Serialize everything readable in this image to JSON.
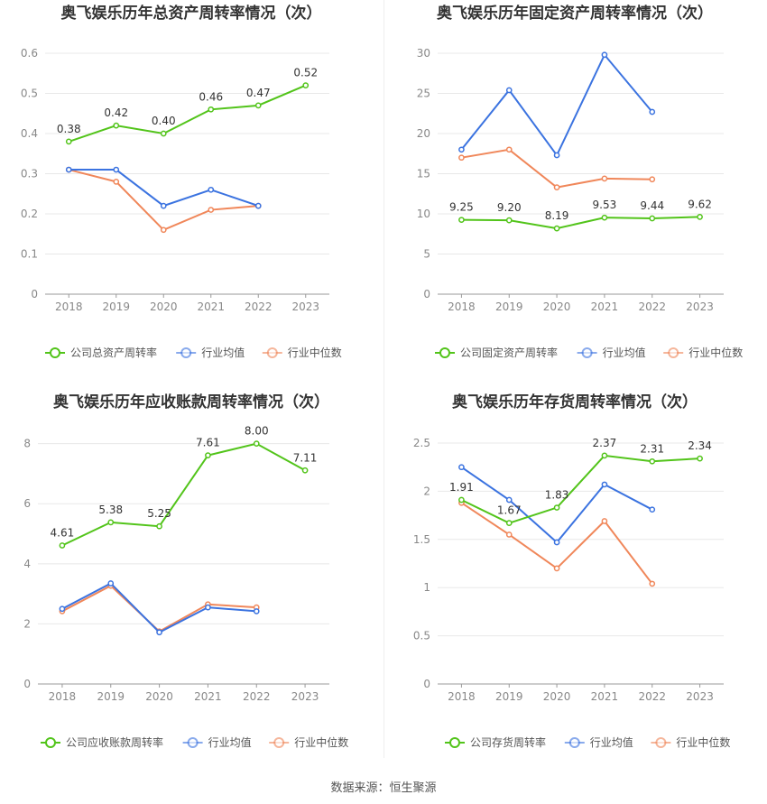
{
  "chart_data": [
    {
      "type": "line",
      "title": "奥飞娱乐历年总资产周转率情况（次）",
      "categories": [
        "2018",
        "2019",
        "2020",
        "2021",
        "2022",
        "2023"
      ],
      "ylim": [
        0,
        0.6
      ],
      "yticks": [
        "0",
        "0.1",
        "0.2",
        "0.3",
        "0.4",
        "0.5",
        "0.6"
      ],
      "series": [
        {
          "name": "公司总资产周转率",
          "color": "#52c41a",
          "values": [
            0.38,
            0.42,
            0.4,
            0.46,
            0.47,
            0.52
          ],
          "labels": [
            "0.38",
            "0.42",
            "0.40",
            "0.46",
            "0.47",
            "0.52"
          ]
        },
        {
          "name": "行业均值",
          "color": "#3b73e0",
          "values": [
            0.31,
            0.31,
            0.22,
            0.26,
            0.22,
            null
          ]
        },
        {
          "name": "行业中位数",
          "color": "#f0875a",
          "values": [
            0.31,
            0.28,
            0.16,
            0.21,
            0.22,
            null
          ]
        }
      ],
      "grid": true,
      "legend": "bottom"
    },
    {
      "type": "line",
      "title": "奥飞娱乐历年固定资产周转率情况（次）",
      "categories": [
        "2018",
        "2019",
        "2020",
        "2021",
        "2022",
        "2023"
      ],
      "ylim": [
        0,
        30
      ],
      "yticks": [
        "0",
        "5",
        "10",
        "15",
        "20",
        "25",
        "30"
      ],
      "series": [
        {
          "name": "公司固定资产周转率",
          "color": "#52c41a",
          "values": [
            9.25,
            9.2,
            8.19,
            9.53,
            9.44,
            9.62
          ],
          "labels": [
            "9.25",
            "9.20",
            "8.19",
            "9.53",
            "9.44",
            "9.62"
          ]
        },
        {
          "name": "行业均值",
          "color": "#3b73e0",
          "values": [
            18.0,
            25.4,
            17.3,
            29.8,
            22.7,
            null
          ]
        },
        {
          "name": "行业中位数",
          "color": "#f0875a",
          "values": [
            17.0,
            18.0,
            13.3,
            14.4,
            14.3,
            null
          ]
        }
      ],
      "grid": true,
      "legend": "bottom"
    },
    {
      "type": "line",
      "title": "奥飞娱乐历年应收账款周转率情况（次）",
      "categories": [
        "2018",
        "2019",
        "2020",
        "2021",
        "2022",
        "2023"
      ],
      "ylim": [
        0,
        8.5
      ],
      "yticks": [
        "0",
        "2",
        "4",
        "6",
        "8"
      ],
      "series": [
        {
          "name": "公司应收账款周转率",
          "color": "#52c41a",
          "values": [
            4.61,
            5.38,
            5.25,
            7.61,
            8.0,
            7.11
          ],
          "labels": [
            "4.61",
            "5.38",
            "5.25",
            "7.61",
            "8.00",
            "7.11"
          ]
        },
        {
          "name": "行业均值",
          "color": "#3b73e0",
          "values": [
            2.5,
            3.35,
            1.72,
            2.55,
            2.42,
            null
          ]
        },
        {
          "name": "行业中位数",
          "color": "#f0875a",
          "values": [
            2.42,
            3.27,
            1.75,
            2.65,
            2.55,
            null
          ]
        }
      ],
      "grid": true,
      "legend": "bottom"
    },
    {
      "type": "line",
      "title": "奥飞娱乐历年存货周转率情况（次）",
      "categories": [
        "2018",
        "2019",
        "2020",
        "2021",
        "2022",
        "2023"
      ],
      "ylim": [
        0,
        2.5
      ],
      "yticks": [
        "0",
        "0.5",
        "1",
        "1.5",
        "2",
        "2.5"
      ],
      "series": [
        {
          "name": "公司存货周转率",
          "color": "#52c41a",
          "values": [
            1.91,
            1.67,
            1.83,
            2.37,
            2.31,
            2.34
          ],
          "labels": [
            "1.91",
            "1.67",
            "1.83",
            "2.37",
            "2.31",
            "2.34"
          ]
        },
        {
          "name": "行业均值",
          "color": "#3b73e0",
          "values": [
            2.25,
            1.91,
            1.47,
            2.07,
            1.81,
            null
          ]
        },
        {
          "name": "行业中位数",
          "color": "#f0875a",
          "values": [
            1.88,
            1.55,
            1.2,
            1.69,
            1.04,
            null
          ]
        }
      ],
      "grid": true,
      "legend": "bottom"
    }
  ],
  "source": "数据来源：恒生聚源"
}
